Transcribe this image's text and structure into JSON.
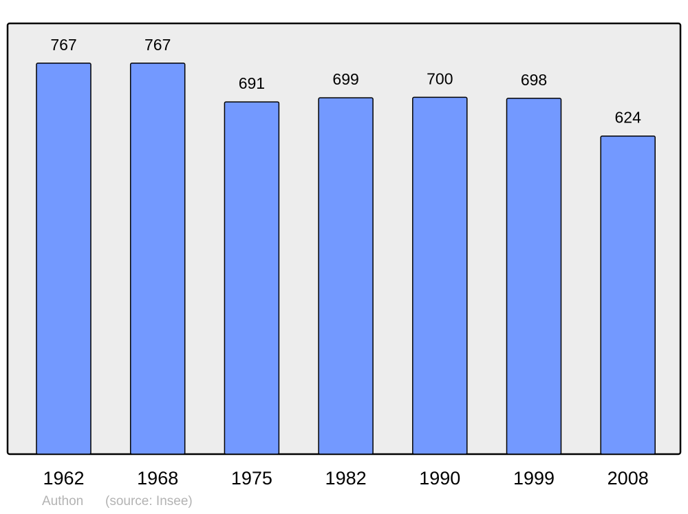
{
  "chart_data": {
    "type": "bar",
    "categories": [
      "1962",
      "1968",
      "1975",
      "1982",
      "1990",
      "1999",
      "2008"
    ],
    "values": [
      767,
      767,
      691,
      699,
      700,
      698,
      624
    ],
    "title": "",
    "xlabel": "",
    "ylabel": "",
    "ylim": [
      0,
      845
    ],
    "grid": false,
    "data_labels": true,
    "colors": {
      "bar": "#7399ff",
      "background": "#ededed",
      "border": "#000000"
    }
  },
  "footer": {
    "author": "Authon",
    "source": "(source: Insee)"
  }
}
